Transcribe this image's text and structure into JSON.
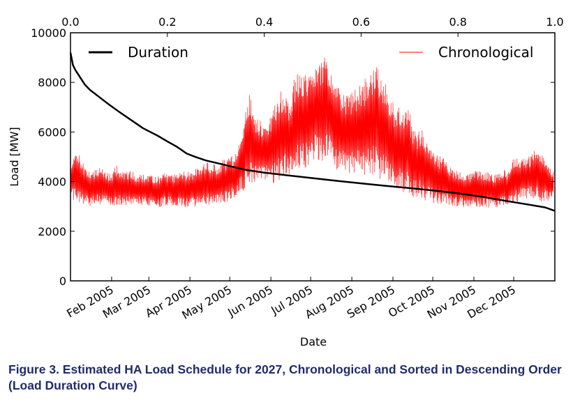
{
  "caption": "Figure 3.  Estimated HA Load Schedule for 2027, Chronological and Sorted in Descending Order (Load Duration Curve)",
  "chart_data": {
    "type": "line",
    "xlabel": "Date",
    "ylabel": "Load [MW]",
    "ylim": [
      0,
      10000
    ],
    "yticks": [
      0,
      2000,
      4000,
      6000,
      8000,
      10000
    ],
    "x_top_axis": {
      "lim": [
        0.0,
        1.0
      ],
      "ticks": [
        "0.0",
        "0.2",
        "0.4",
        "0.6",
        "0.8",
        "1.0"
      ]
    },
    "x_date_range_days": [
      0,
      365
    ],
    "month_ticks": [
      {
        "label": "Feb 2005",
        "day": 31
      },
      {
        "label": "Mar 2005",
        "day": 59
      },
      {
        "label": "Apr 2005",
        "day": 90
      },
      {
        "label": "May 2005",
        "day": 120
      },
      {
        "label": "Jun 2005",
        "day": 151
      },
      {
        "label": "Jul 2005",
        "day": 181
      },
      {
        "label": "Aug 2005",
        "day": 212
      },
      {
        "label": "Sep 2005",
        "day": 243
      },
      {
        "label": "Oct 2005",
        "day": 273
      },
      {
        "label": "Nov 2005",
        "day": 304
      },
      {
        "label": "Dec 2005",
        "day": 334
      }
    ],
    "legend_position": "top",
    "grid": false,
    "series": [
      {
        "name": "Duration",
        "axis": "top",
        "color": "#000000",
        "x": [
          0.0,
          0.002,
          0.005,
          0.01,
          0.02,
          0.03,
          0.04,
          0.05,
          0.06,
          0.08,
          0.1,
          0.12,
          0.15,
          0.18,
          0.2,
          0.22,
          0.24,
          0.26,
          0.28,
          0.3,
          0.33,
          0.36,
          0.4,
          0.45,
          0.5,
          0.55,
          0.6,
          0.65,
          0.7,
          0.75,
          0.8,
          0.85,
          0.9,
          0.95,
          0.98,
          1.0
        ],
        "y": [
          9200,
          9000,
          8700,
          8500,
          8200,
          7900,
          7700,
          7550,
          7400,
          7100,
          6820,
          6550,
          6150,
          5850,
          5620,
          5400,
          5130,
          4980,
          4850,
          4760,
          4620,
          4480,
          4360,
          4250,
          4140,
          4030,
          3930,
          3830,
          3740,
          3640,
          3530,
          3390,
          3220,
          3060,
          2960,
          2820
        ]
      },
      {
        "name": "Chronological",
        "axis": "bottom",
        "color": "#ff0000",
        "x": [
          0,
          5,
          10,
          15,
          20,
          25,
          30,
          35,
          40,
          45,
          50,
          55,
          60,
          65,
          70,
          75,
          80,
          85,
          90,
          95,
          100,
          105,
          110,
          115,
          120,
          125,
          130,
          135,
          140,
          145,
          150,
          155,
          160,
          165,
          170,
          175,
          180,
          185,
          190,
          195,
          200,
          205,
          210,
          215,
          220,
          225,
          230,
          235,
          240,
          245,
          250,
          255,
          260,
          265,
          270,
          275,
          280,
          285,
          290,
          295,
          300,
          305,
          310,
          315,
          320,
          325,
          330,
          335,
          340,
          345,
          350,
          355,
          360,
          364
        ],
        "ymin": [
          3300,
          3200,
          3100,
          3000,
          3050,
          3100,
          3000,
          3050,
          3000,
          3050,
          3100,
          3050,
          3000,
          2950,
          3000,
          3050,
          3000,
          2950,
          2950,
          3000,
          3050,
          3050,
          3100,
          3100,
          3200,
          3400,
          3600,
          3800,
          3900,
          4000,
          3900,
          3950,
          4200,
          4300,
          4400,
          4500,
          4600,
          4900,
          4700,
          4800,
          4500,
          4400,
          4300,
          4300,
          4300,
          4200,
          4300,
          4000,
          3900,
          3700,
          3600,
          3400,
          3300,
          3200,
          3200,
          3100,
          3100,
          3000,
          3000,
          2950,
          2950,
          3000,
          2950,
          2950,
          2950,
          3000,
          3050,
          3100,
          3300,
          3300,
          3300,
          3200,
          3200,
          3400
        ],
        "ymax": [
          4800,
          5300,
          4700,
          4400,
          4600,
          4500,
          4300,
          4700,
          4400,
          4500,
          4300,
          4300,
          4400,
          4200,
          4400,
          4300,
          4300,
          4400,
          4400,
          4600,
          4800,
          4800,
          4700,
          4900,
          5000,
          5200,
          6500,
          7500,
          6600,
          6400,
          6600,
          7400,
          7800,
          7200,
          8500,
          8400,
          8300,
          8800,
          9200,
          8700,
          8000,
          7600,
          7500,
          7800,
          8000,
          8400,
          8700,
          8200,
          7700,
          7000,
          7100,
          6900,
          6000,
          6300,
          5400,
          5100,
          5000,
          4700,
          4500,
          4400,
          4300,
          4500,
          4400,
          4400,
          4300,
          4500,
          4500,
          5100,
          5000,
          5000,
          5300,
          5100,
          4700,
          4400
        ]
      }
    ]
  }
}
